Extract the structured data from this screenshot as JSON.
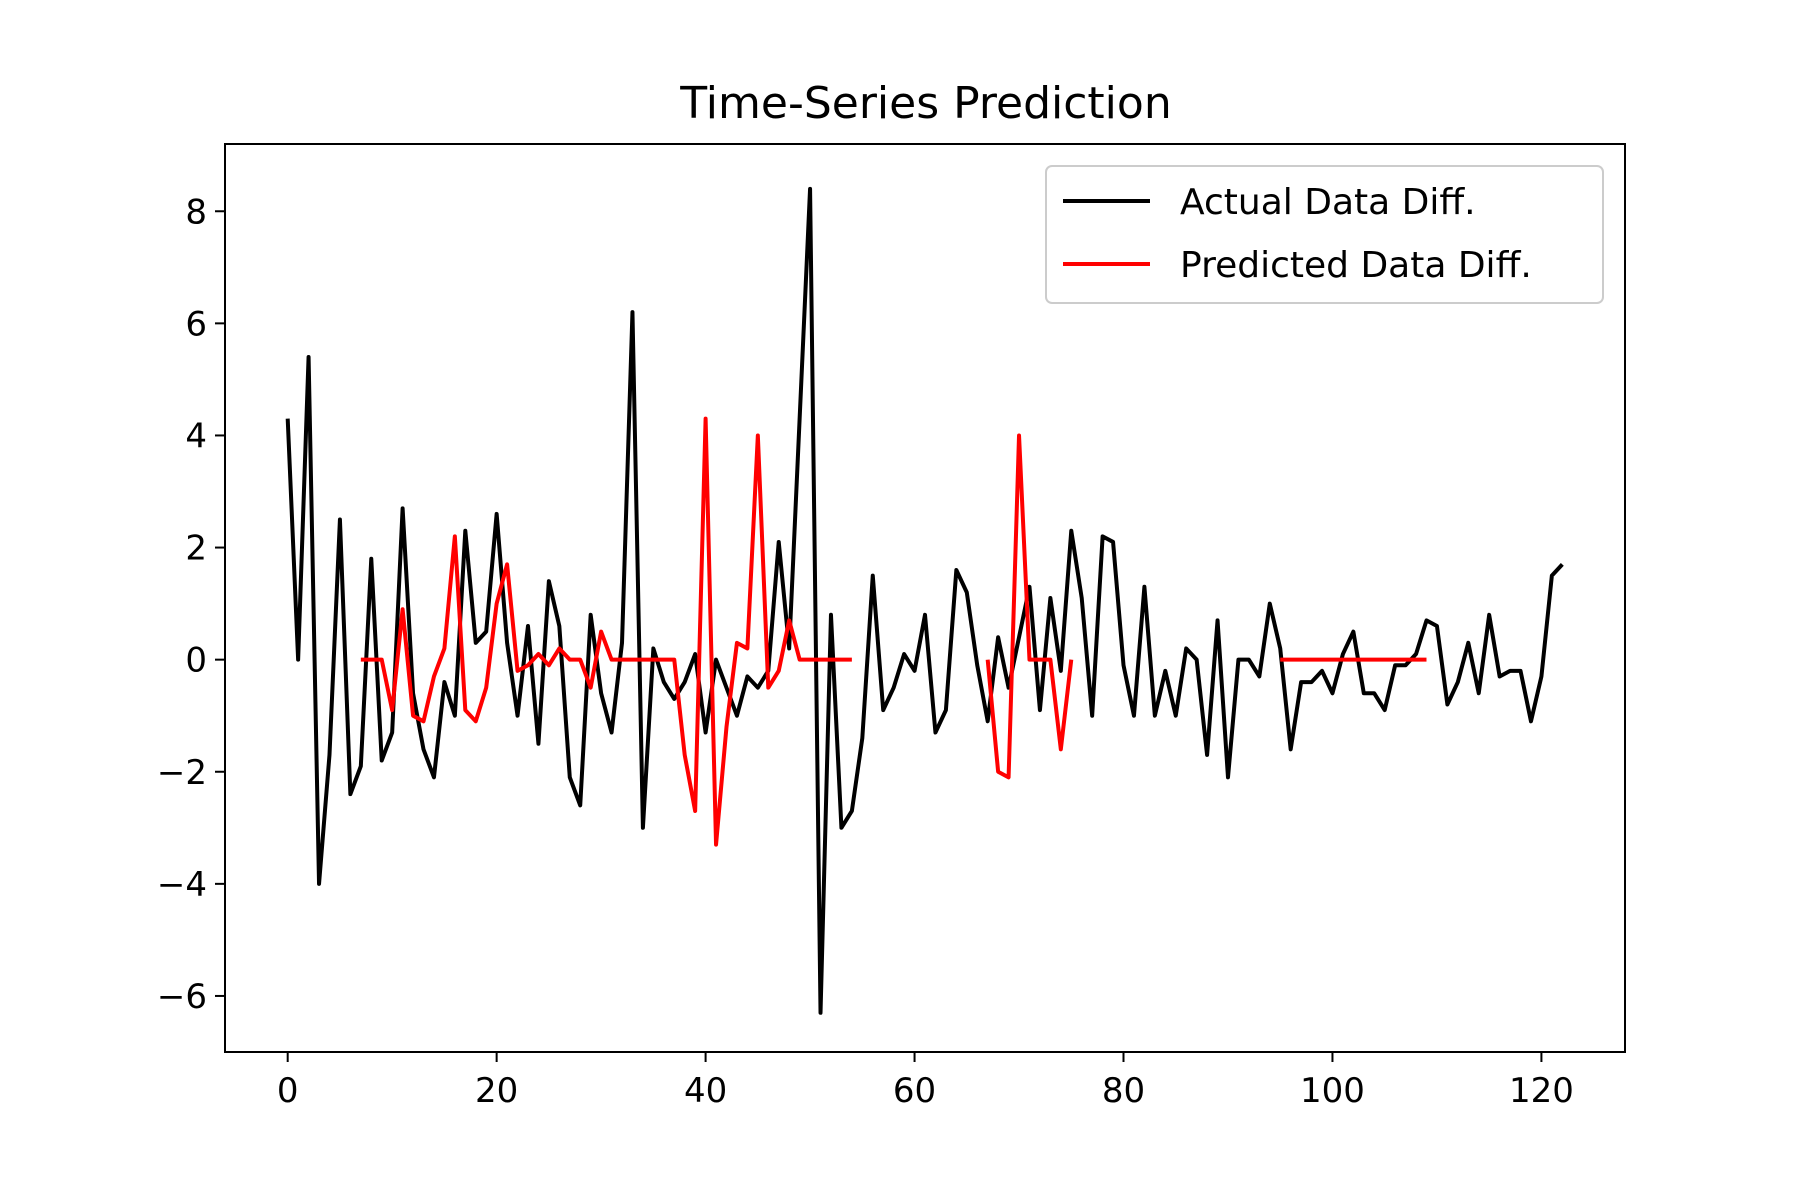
{
  "chart_data": {
    "type": "line",
    "title": "Time-Series Prediction",
    "xlabel": "",
    "ylabel": "",
    "xlim": [
      -6,
      128
    ],
    "ylim": [
      -7,
      9.2
    ],
    "xticks": [
      0,
      20,
      40,
      60,
      80,
      100,
      120
    ],
    "xtick_labels": [
      "0",
      "20",
      "40",
      "60",
      "80",
      "100",
      "120"
    ],
    "yticks": [
      -6,
      -4,
      -2,
      0,
      2,
      4,
      6,
      8
    ],
    "ytick_labels": [
      "−6",
      "−4",
      "−2",
      "0",
      "2",
      "4",
      "6",
      "8"
    ],
    "grid": false,
    "legend_position": "upper right",
    "series": [
      {
        "name": "Actual Data Diff.",
        "color": "#000000",
        "x": [
          0,
          1,
          2,
          3,
          4,
          5,
          6,
          7,
          8,
          9,
          10,
          11,
          12,
          13,
          14,
          15,
          16,
          17,
          18,
          19,
          20,
          21,
          22,
          23,
          24,
          25,
          26,
          27,
          28,
          29,
          30,
          31,
          32,
          33,
          34,
          35,
          36,
          37,
          38,
          39,
          40,
          41,
          42,
          43,
          44,
          45,
          46,
          47,
          48,
          49,
          50,
          51,
          52,
          53,
          54,
          55,
          56,
          57,
          58,
          59,
          60,
          61,
          62,
          63,
          64,
          65,
          66,
          67,
          68,
          69,
          70,
          71,
          72,
          73,
          74,
          75,
          76,
          77,
          78,
          79,
          80,
          81,
          82,
          83,
          84,
          85,
          86,
          87,
          88,
          89,
          90,
          91,
          92,
          93,
          94,
          95,
          96,
          97,
          98,
          99,
          100,
          101,
          102,
          103,
          104,
          105,
          106,
          107,
          108,
          109,
          110,
          111,
          112,
          113,
          114,
          115,
          116,
          117,
          118,
          119,
          120,
          121,
          122
        ],
        "y": [
          4.3,
          0.0,
          5.4,
          -4.0,
          -1.7,
          2.5,
          -2.4,
          -1.9,
          1.8,
          -1.8,
          -1.3,
          2.7,
          -0.6,
          -1.6,
          -2.1,
          -0.4,
          -1.0,
          2.3,
          0.3,
          0.5,
          2.6,
          0.3,
          -1.0,
          0.6,
          -1.5,
          1.4,
          0.6,
          -2.1,
          -2.6,
          0.8,
          -0.6,
          -1.3,
          0.3,
          6.2,
          -3.0,
          0.2,
          -0.4,
          -0.7,
          -0.4,
          0.1,
          -1.3,
          0.0,
          -0.5,
          -1.0,
          -0.3,
          -0.5,
          -0.2,
          2.1,
          0.2,
          4.3,
          8.4,
          -6.3,
          0.8,
          -3.0,
          -2.7,
          -1.4,
          1.5,
          -0.9,
          -0.5,
          0.1,
          -0.2,
          0.8,
          -1.3,
          -0.9,
          1.6,
          1.2,
          -0.1,
          -1.1,
          0.4,
          -0.5,
          0.4,
          1.3,
          -0.9,
          1.1,
          -0.2,
          2.3,
          1.1,
          -1.0,
          2.2,
          2.1,
          -0.1,
          -1.0,
          1.3,
          -1.0,
          -0.2,
          -1.0,
          0.2,
          0.0,
          -1.7,
          0.7,
          -2.1,
          0.0,
          0.0,
          -0.3,
          1.0,
          0.2,
          -1.6,
          -0.4,
          -0.4,
          -0.2,
          -0.6,
          0.1,
          0.5,
          -0.6,
          -0.6,
          -0.9,
          -0.1,
          -0.1,
          0.1,
          0.7,
          0.6,
          -0.8,
          -0.4,
          0.3,
          -0.6,
          0.8,
          -0.3,
          -0.2,
          -0.2,
          -1.1,
          -0.3,
          1.5,
          1.7
        ]
      },
      {
        "name": "Predicted Data Diff.",
        "color": "#ff0000",
        "segments": [
          {
            "x": [
              7,
              8,
              9,
              10,
              11,
              12,
              13,
              14,
              15,
              16,
              17,
              18,
              19,
              20,
              21,
              22,
              23,
              24,
              25,
              26,
              27,
              28,
              29,
              30,
              31,
              32,
              33,
              34,
              35,
              36,
              37,
              38,
              39,
              40,
              41,
              42,
              43,
              44,
              45,
              46,
              47,
              48,
              49,
              50,
              51,
              52,
              53,
              54
            ],
            "y": [
              0.0,
              0.0,
              0.0,
              -0.9,
              0.9,
              -1.0,
              -1.1,
              -0.3,
              0.2,
              2.2,
              -0.9,
              -1.1,
              -0.5,
              1.0,
              1.7,
              -0.2,
              -0.1,
              0.1,
              -0.1,
              0.2,
              0.0,
              0.0,
              -0.5,
              0.5,
              0.0,
              0.0,
              0.0,
              0.0,
              0.0,
              0.0,
              0.0,
              -1.7,
              -2.7,
              4.3,
              -3.3,
              -1.2,
              0.3,
              0.2,
              4.0,
              -0.5,
              -0.2,
              0.7,
              0.0,
              0.0,
              0.0,
              0.0,
              0.0,
              0.0
            ]
          },
          {
            "x": [
              67,
              68,
              69,
              70,
              71,
              72,
              73,
              74,
              75
            ],
            "y": [
              0.0,
              -2.0,
              -2.1,
              4.0,
              0.0,
              0.0,
              0.0,
              -1.6,
              0.0
            ]
          },
          {
            "x": [
              95,
              96,
              97,
              98,
              99,
              100,
              101,
              102,
              103,
              104,
              105,
              106,
              107,
              108,
              109
            ],
            "y": [
              0.0,
              0.0,
              0.0,
              0.0,
              0.0,
              0.0,
              0.0,
              0.0,
              0.0,
              0.0,
              0.0,
              0.0,
              0.0,
              0.0,
              0.0
            ]
          }
        ]
      }
    ]
  }
}
